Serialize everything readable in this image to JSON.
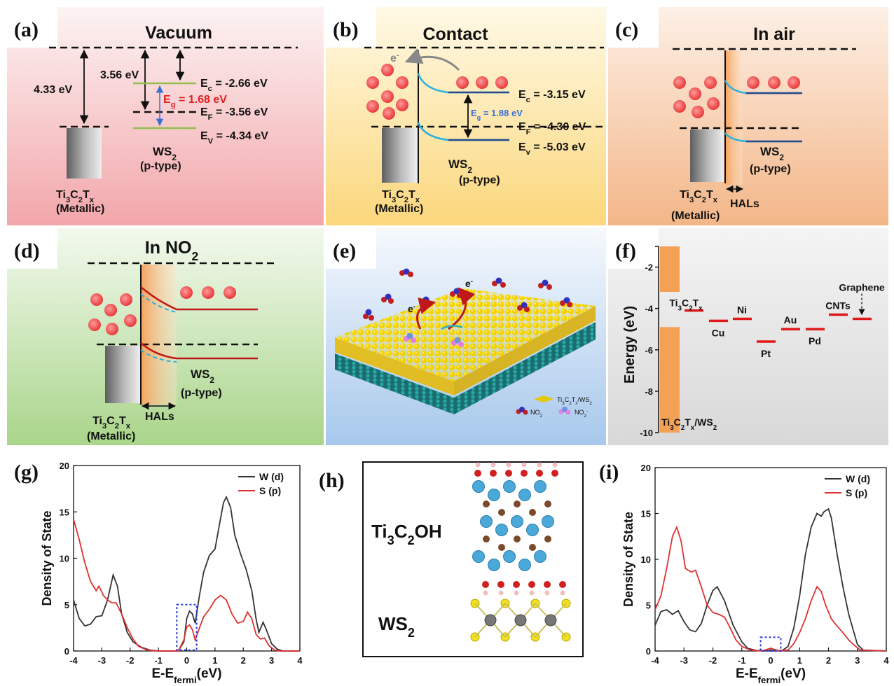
{
  "panels": {
    "a": {
      "label": "(a)",
      "title": "Vacuum",
      "wf_metal": "4.33 eV",
      "wf_ws2": "3.56 eV",
      "ec": "E<sub>c</sub> = -2.66 eV",
      "eg": "E<sub>g</sub> = 1.68 eV",
      "ef": "E<sub>F</sub> = -3.56 eV",
      "ev": "E<sub>V</sub> = -4.34 eV",
      "ws2": "WS<sub>2</sub>",
      "ptype": "(p-type)",
      "metal": "Ti<sub>3</sub>C<sub>2</sub>T<sub>x</sub>",
      "metallic": "(Metallic)"
    },
    "b": {
      "label": "(b)",
      "title": "Contact",
      "electron": "e<sup>-</sup>",
      "ec": "E<sub>c</sub> = -3.15 eV",
      "eg": "E<sub>g</sub> = 1.88 eV",
      "ef": "E<sub>F</sub> = -4.30 eV",
      "ev": "E<sub>v</sub> = -5.03 eV",
      "ws2": "WS<sub>2</sub>",
      "ptype": "(p-type)",
      "metal": "Ti<sub>3</sub>C<sub>2</sub>T<sub>x</sub>",
      "metallic": "(Metallic)"
    },
    "c": {
      "label": "(c)",
      "title": "In air",
      "ws2": "WS<sub>2</sub>",
      "ptype": "(p-type)",
      "metal": "Ti<sub>3</sub>C<sub>2</sub>T<sub>x</sub>",
      "metallic": "(Metallic)",
      "hals": "HALs"
    },
    "d": {
      "label": "(d)",
      "title": "In NO<sub>2</sub>",
      "ws2": "WS<sub>2</sub>",
      "ptype": "(p-type)",
      "metal": "Ti<sub>3</sub>C<sub>2</sub>T<sub>x</sub>",
      "metallic": "(Metallic)",
      "hals": "HALs"
    },
    "e": {
      "label": "(e)",
      "electron": "e<sup>-</sup>",
      "legend_composite": "Ti<sub>3</sub>C<sub>2</sub>T<sub>x</sub>/WS<sub>2</sub>",
      "legend_no2": "NO<sub>2</sub>",
      "legend_no2minus": "NO<sub>2</sub><sup>-</sup>"
    },
    "f": {
      "label": "(f)",
      "ylabel": "Energy (eV)",
      "yticks": [
        "-2",
        "-4",
        "-6",
        "-8",
        "-10"
      ],
      "composite": "Ti<sub>3</sub>C<sub>2</sub>T<sub>x</sub>/WS<sub>2</sub>",
      "materials": [
        {
          "name": "Ti<sub>3</sub>C<sub>2</sub>T<sub>x</sub>",
          "energy": -4.1
        },
        {
          "name": "Cu",
          "energy": -4.6
        },
        {
          "name": "Ni",
          "energy": -4.5
        },
        {
          "name": "Pt",
          "energy": -5.6
        },
        {
          "name": "Au",
          "energy": -5.0
        },
        {
          "name": "Pd",
          "energy": -5.0
        },
        {
          "name": "CNTs",
          "energy": -4.3
        },
        {
          "name": "Graphene",
          "energy": -4.5
        }
      ]
    },
    "g": {
      "label": "(g)"
    },
    "h": {
      "label": "(h)",
      "top": "Ti<sub>3</sub>C<sub>2</sub>OH",
      "bottom": "WS<sub>2</sub>"
    },
    "i": {
      "label": "(i)"
    }
  },
  "chart_data": [
    {
      "type": "line",
      "panel": "g",
      "xlabel": "E-E<sub>fermi</sub>(eV)",
      "ylabel": "Density of State",
      "xlim": [
        -4,
        4
      ],
      "ylim": [
        0,
        20
      ],
      "xticks": [
        "-4",
        "-3",
        "-2",
        "-1",
        "0",
        "1",
        "2",
        "3",
        "4"
      ],
      "yticks": [
        "0",
        "5",
        "10",
        "15",
        "20"
      ],
      "legend": "top-right",
      "series": [
        {
          "name": "W (d)",
          "color": "#333333",
          "points": [
            [
              -4,
              5.5
            ],
            [
              -3.8,
              3.5
            ],
            [
              -3.6,
              2.7
            ],
            [
              -3.4,
              2.9
            ],
            [
              -3.2,
              3.7
            ],
            [
              -3.0,
              3.8
            ],
            [
              -2.8,
              5.5
            ],
            [
              -2.6,
              8.2
            ],
            [
              -2.45,
              7.0
            ],
            [
              -2.3,
              4.0
            ],
            [
              -2.1,
              2.0
            ],
            [
              -1.9,
              1.0
            ],
            [
              -1.6,
              0.4
            ],
            [
              -1.3,
              0.1
            ],
            [
              -1.0,
              0.0
            ],
            [
              -0.3,
              0.0
            ],
            [
              -0.1,
              1.0
            ],
            [
              0.0,
              3.5
            ],
            [
              0.1,
              4.3
            ],
            [
              0.2,
              4.0
            ],
            [
              0.3,
              3.0
            ],
            [
              0.45,
              6.0
            ],
            [
              0.6,
              8.5
            ],
            [
              0.8,
              10.3
            ],
            [
              1.0,
              11.0
            ],
            [
              1.15,
              13.5
            ],
            [
              1.3,
              16.0
            ],
            [
              1.4,
              16.6
            ],
            [
              1.55,
              15.5
            ],
            [
              1.7,
              12.5
            ],
            [
              1.9,
              10.5
            ],
            [
              2.1,
              8.8
            ],
            [
              2.3,
              6.5
            ],
            [
              2.45,
              3.5
            ],
            [
              2.55,
              2.0
            ],
            [
              2.7,
              3.1
            ],
            [
              2.8,
              2.4
            ],
            [
              3.0,
              0.8
            ],
            [
              3.2,
              0.2
            ],
            [
              3.4,
              0.0
            ],
            [
              4,
              0.0
            ]
          ]
        },
        {
          "name": "S  (p)",
          "color": "#e03030",
          "points": [
            [
              -4,
              14.2
            ],
            [
              -3.8,
              12.0
            ],
            [
              -3.6,
              9.5
            ],
            [
              -3.4,
              7.5
            ],
            [
              -3.2,
              6.5
            ],
            [
              -3.1,
              7.0
            ],
            [
              -2.95,
              6.0
            ],
            [
              -2.8,
              5.5
            ],
            [
              -2.65,
              5.2
            ],
            [
              -2.5,
              5.2
            ],
            [
              -2.3,
              4.0
            ],
            [
              -2.1,
              2.5
            ],
            [
              -1.9,
              1.3
            ],
            [
              -1.7,
              0.5
            ],
            [
              -1.4,
              0.1
            ],
            [
              -1.1,
              0.0
            ],
            [
              -0.3,
              0.0
            ],
            [
              -0.1,
              1.2
            ],
            [
              0.0,
              2.6
            ],
            [
              0.1,
              2.8
            ],
            [
              0.2,
              2.3
            ],
            [
              0.3,
              1.2
            ],
            [
              0.45,
              2.5
            ],
            [
              0.6,
              3.7
            ],
            [
              0.8,
              4.5
            ],
            [
              1.0,
              5.5
            ],
            [
              1.2,
              6.0
            ],
            [
              1.4,
              5.5
            ],
            [
              1.6,
              4.0
            ],
            [
              1.8,
              3.0
            ],
            [
              2.0,
              3.2
            ],
            [
              2.15,
              4.2
            ],
            [
              2.3,
              3.5
            ],
            [
              2.45,
              1.8
            ],
            [
              2.6,
              1.3
            ],
            [
              2.75,
              1.4
            ],
            [
              2.9,
              0.6
            ],
            [
              3.1,
              0.1
            ],
            [
              3.3,
              0.0
            ],
            [
              4,
              0.0
            ]
          ]
        }
      ]
    },
    {
      "type": "line",
      "panel": "i",
      "xlabel": "E-E<sub>fermi</sub>(eV)",
      "ylabel": "Density of State",
      "xlim": [
        -4,
        4
      ],
      "ylim": [
        0,
        20
      ],
      "xticks": [
        "-4",
        "-3",
        "-2",
        "-1",
        "0",
        "1",
        "2",
        "3",
        "4"
      ],
      "yticks": [
        "0",
        "5",
        "10",
        "15",
        "20"
      ],
      "legend": "top-right",
      "series": [
        {
          "name": "W (d)",
          "color": "#333333",
          "points": [
            [
              -4,
              2.8
            ],
            [
              -3.8,
              4.3
            ],
            [
              -3.6,
              4.5
            ],
            [
              -3.4,
              4.0
            ],
            [
              -3.2,
              4.4
            ],
            [
              -3.0,
              3.2
            ],
            [
              -2.8,
              2.3
            ],
            [
              -2.6,
              2.1
            ],
            [
              -2.4,
              3.0
            ],
            [
              -2.2,
              5.0
            ],
            [
              -2.0,
              6.6
            ],
            [
              -1.85,
              7.0
            ],
            [
              -1.6,
              5.5
            ],
            [
              -1.3,
              2.8
            ],
            [
              -1.0,
              1.0
            ],
            [
              -0.8,
              0.3
            ],
            [
              -0.5,
              0.05
            ],
            [
              0.4,
              0.05
            ],
            [
              0.6,
              0.5
            ],
            [
              0.8,
              2.5
            ],
            [
              1.0,
              6.0
            ],
            [
              1.2,
              10.5
            ],
            [
              1.4,
              13.5
            ],
            [
              1.6,
              15.0
            ],
            [
              1.75,
              14.7
            ],
            [
              1.85,
              15.2
            ],
            [
              2.0,
              15.5
            ],
            [
              2.1,
              14.5
            ],
            [
              2.3,
              10.5
            ],
            [
              2.5,
              7.0
            ],
            [
              2.7,
              4.0
            ],
            [
              2.9,
              1.8
            ],
            [
              3.0,
              0.7
            ],
            [
              3.2,
              0.1
            ],
            [
              4,
              0.0
            ]
          ]
        },
        {
          "name": "S  (p)",
          "color": "#e03030",
          "points": [
            [
              -4,
              4.5
            ],
            [
              -3.8,
              6.0
            ],
            [
              -3.6,
              9.0
            ],
            [
              -3.4,
              12.5
            ],
            [
              -3.25,
              13.5
            ],
            [
              -3.1,
              12.0
            ],
            [
              -2.95,
              9.0
            ],
            [
              -2.75,
              8.6
            ],
            [
              -2.6,
              8.8
            ],
            [
              -2.4,
              7.0
            ],
            [
              -2.2,
              5.0
            ],
            [
              -2.0,
              4.2
            ],
            [
              -1.8,
              4.0
            ],
            [
              -1.6,
              3.7
            ],
            [
              -1.4,
              2.5
            ],
            [
              -1.2,
              1.2
            ],
            [
              -1.0,
              0.5
            ],
            [
              -0.7,
              0.1
            ],
            [
              -0.3,
              0.0
            ],
            [
              -0.1,
              0.2
            ],
            [
              0.0,
              0.3
            ],
            [
              0.1,
              0.2
            ],
            [
              0.3,
              0.0
            ],
            [
              0.6,
              0.1
            ],
            [
              0.8,
              0.8
            ],
            [
              1.0,
              2.0
            ],
            [
              1.2,
              3.5
            ],
            [
              1.4,
              5.5
            ],
            [
              1.6,
              7.0
            ],
            [
              1.75,
              6.5
            ],
            [
              1.9,
              5.0
            ],
            [
              2.1,
              3.5
            ],
            [
              2.3,
              2.7
            ],
            [
              2.5,
              2.0
            ],
            [
              2.7,
              1.2
            ],
            [
              2.9,
              0.6
            ],
            [
              3.1,
              0.1
            ],
            [
              4,
              0.0
            ]
          ]
        }
      ]
    }
  ]
}
